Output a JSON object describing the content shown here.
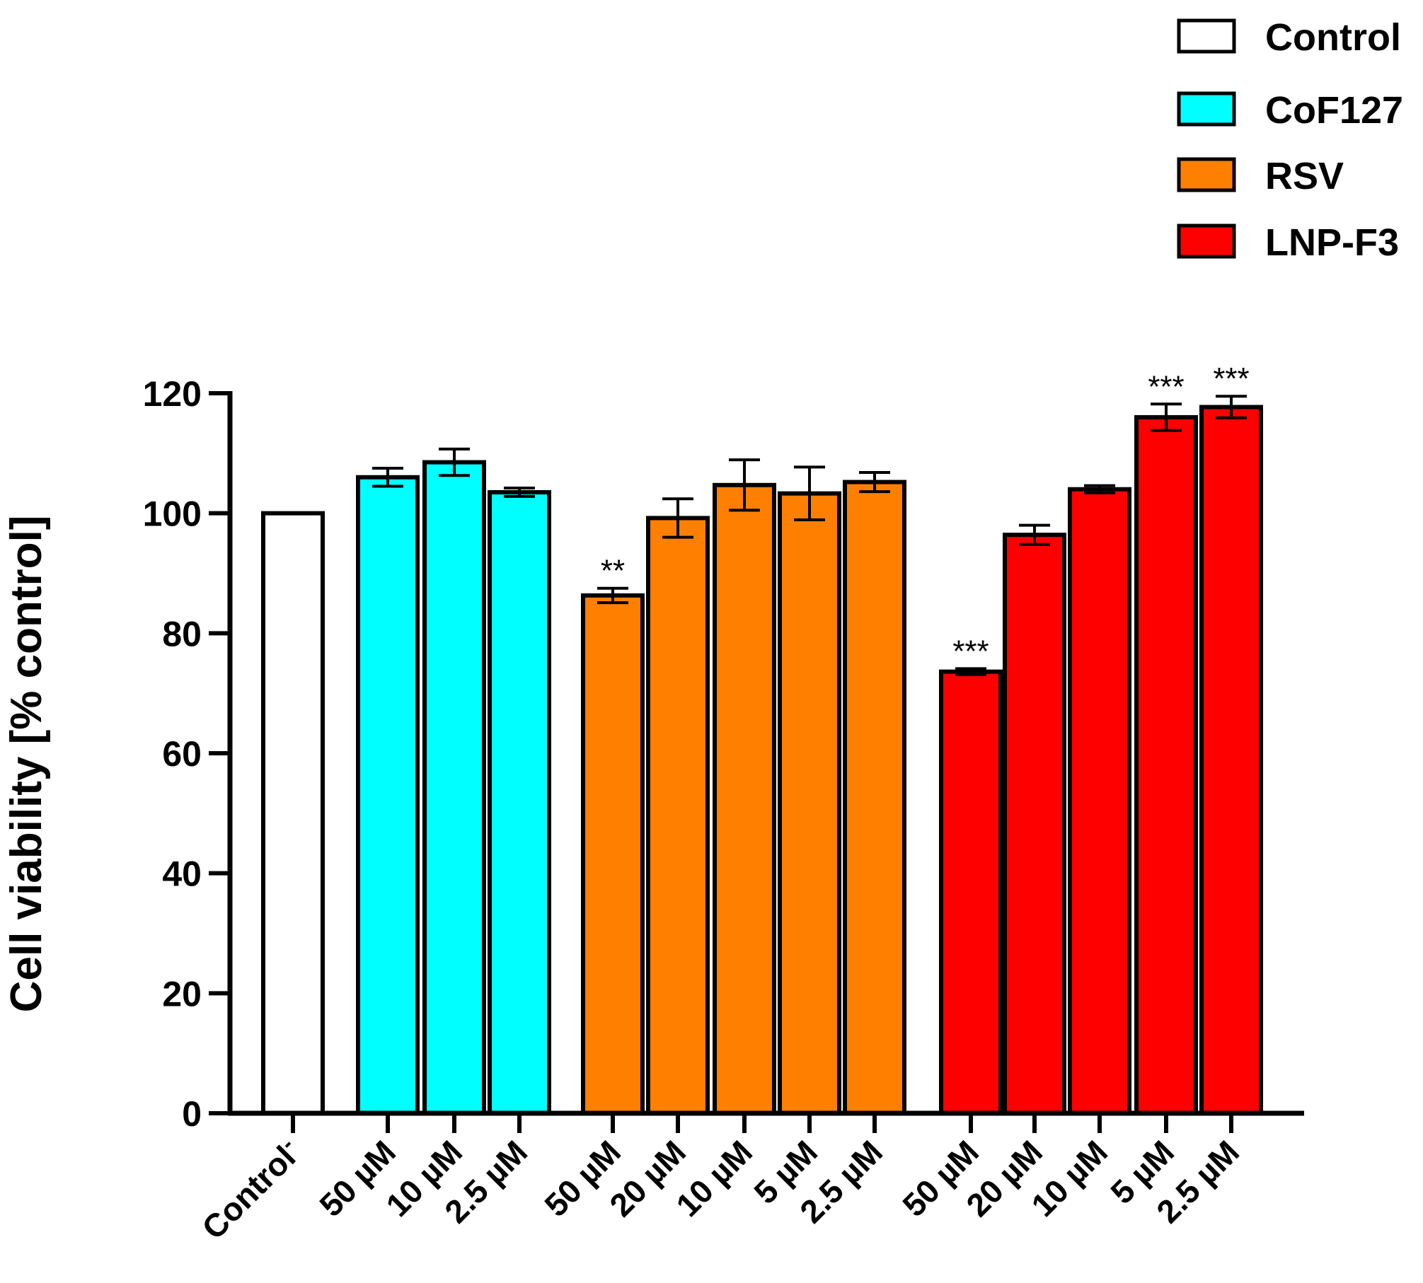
{
  "chart_data": {
    "type": "bar",
    "title": "",
    "xlabel": "",
    "ylabel": "Cell viability [% control]",
    "ylim": [
      0,
      120
    ],
    "yticks": [
      0,
      20,
      40,
      60,
      80,
      100,
      120
    ],
    "grid": false,
    "legend_position": "top-right",
    "series": [
      {
        "name": "Control",
        "color": "#ffffff"
      },
      {
        "name": "CoF127",
        "color": "#00ffff"
      },
      {
        "name": "RSV",
        "color": "#ff8000"
      },
      {
        "name": "LNP-F3",
        "color": "#ff0000"
      }
    ],
    "bars": [
      {
        "label": "Control",
        "superscript": "-",
        "series": "Control",
        "value": 100,
        "error": 0,
        "sig": ""
      },
      {
        "label": "50 µM",
        "series": "CoF127",
        "value": 106,
        "error": 1.5,
        "sig": ""
      },
      {
        "label": "10 µM",
        "series": "CoF127",
        "value": 108.5,
        "error": 2.2,
        "sig": ""
      },
      {
        "label": "2.5 µM",
        "series": "CoF127",
        "value": 103.5,
        "error": 0.7,
        "sig": ""
      },
      {
        "label": "50 µM",
        "series": "RSV",
        "value": 86.3,
        "error": 1.2,
        "sig": "**"
      },
      {
        "label": "20 µM",
        "series": "RSV",
        "value": 99.2,
        "error": 3.2,
        "sig": ""
      },
      {
        "label": "10 µM",
        "series": "RSV",
        "value": 104.7,
        "error": 4.2,
        "sig": ""
      },
      {
        "label": "5 µM",
        "series": "RSV",
        "value": 103.3,
        "error": 4.4,
        "sig": ""
      },
      {
        "label": "2.5 µM",
        "series": "RSV",
        "value": 105.2,
        "error": 1.6,
        "sig": ""
      },
      {
        "label": "50 µM",
        "series": "LNP-F3",
        "value": 73.6,
        "error": 0.5,
        "sig": "***"
      },
      {
        "label": "20 µM",
        "series": "LNP-F3",
        "value": 96.4,
        "error": 1.6,
        "sig": ""
      },
      {
        "label": "10 µM",
        "series": "LNP-F3",
        "value": 104,
        "error": 0.6,
        "sig": ""
      },
      {
        "label": "5 µM",
        "series": "LNP-F3",
        "value": 116,
        "error": 2.2,
        "sig": "***"
      },
      {
        "label": "2.5 µM",
        "series": "LNP-F3",
        "value": 117.7,
        "error": 1.8,
        "sig": "***"
      }
    ]
  }
}
